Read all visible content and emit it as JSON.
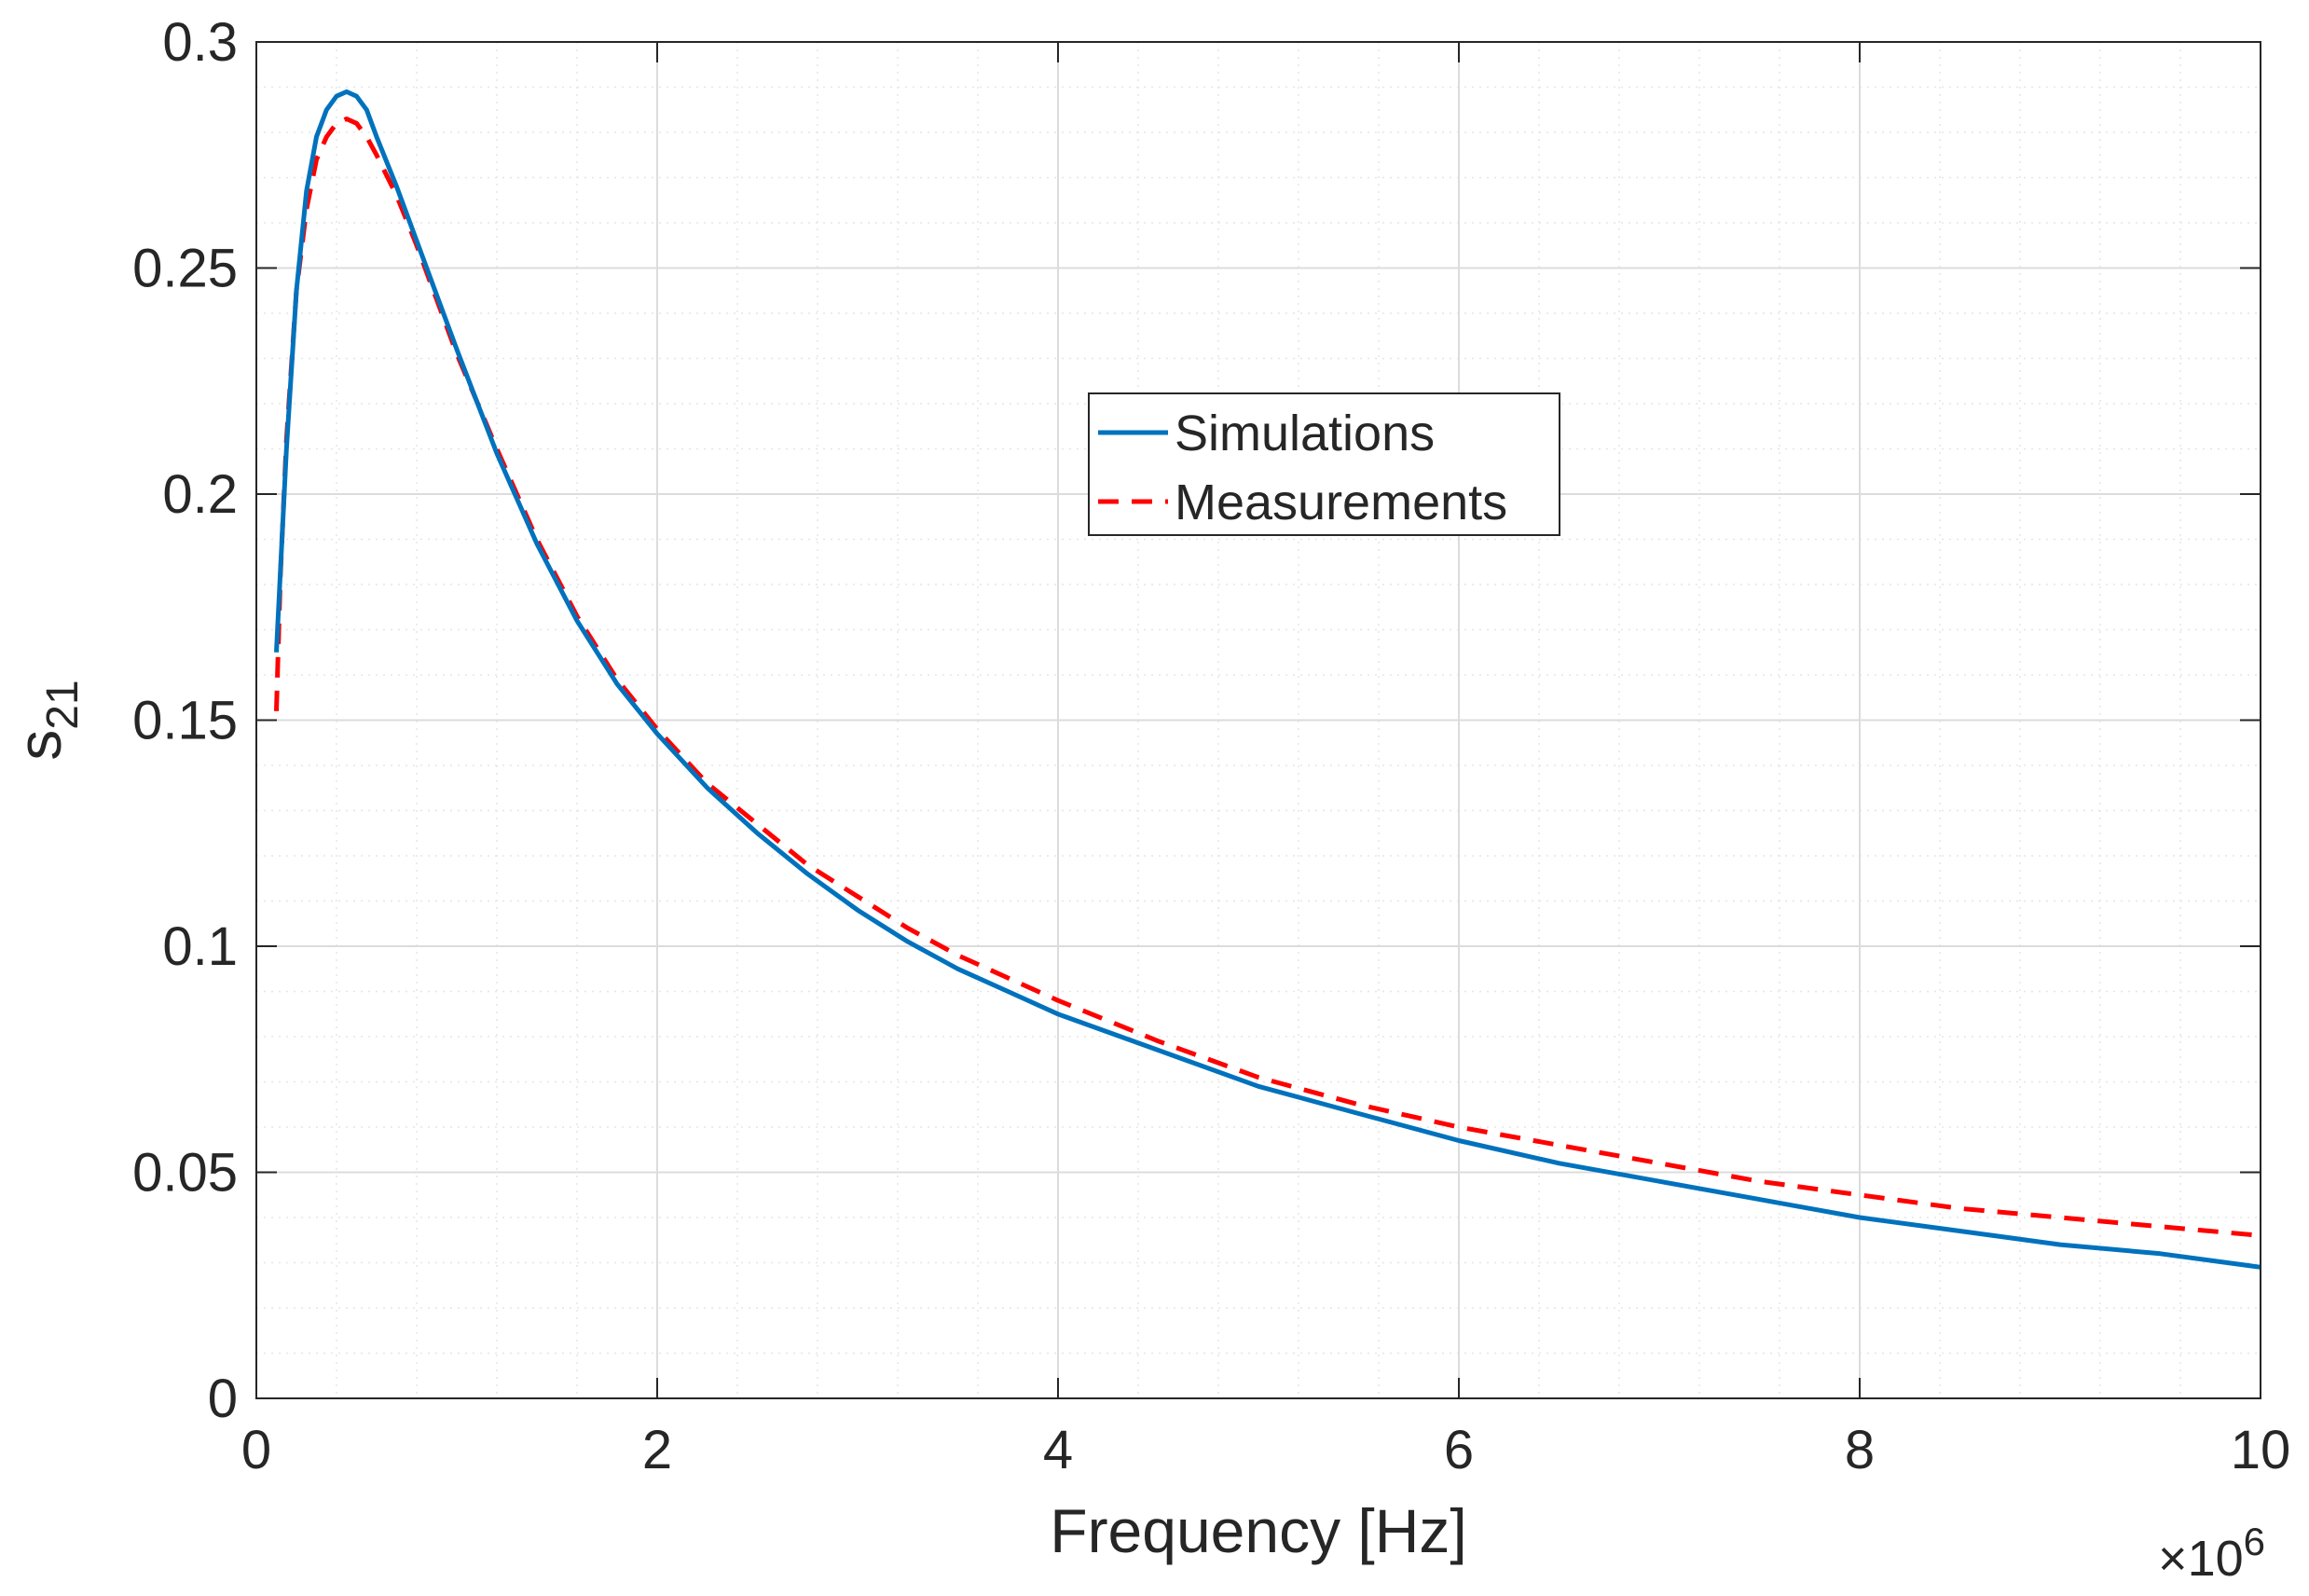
{
  "chart_data": {
    "type": "line",
    "title": "",
    "xlabel": "Frequency [Hz]",
    "ylabel_base": "s",
    "ylabel_sub": "21",
    "x_exponent_prefix": "×10",
    "x_exponent_power": "6",
    "x_exponent_value": 1000000,
    "xlim": [
      0,
      10
    ],
    "ylim": [
      0,
      0.3
    ],
    "xticks": [
      0,
      2,
      4,
      6,
      8,
      10
    ],
    "xtick_labels": [
      "0",
      "2",
      "4",
      "6",
      "8",
      "10"
    ],
    "yticks": [
      0,
      0.05,
      0.1,
      0.15,
      0.2,
      0.25,
      0.3
    ],
    "ytick_labels": [
      "0",
      "0.05",
      "0.1",
      "0.15",
      "0.2",
      "0.25",
      "0.3"
    ],
    "grid": true,
    "minor_grid": true,
    "legend_position": "upper-center",
    "series": [
      {
        "name": "Simulations",
        "color": "#0072BD",
        "style": "solid",
        "x": [
          0.1,
          0.15,
          0.2,
          0.25,
          0.3,
          0.35,
          0.4,
          0.45,
          0.5,
          0.55,
          0.6,
          0.7,
          0.8,
          0.9,
          1.0,
          1.2,
          1.4,
          1.6,
          1.8,
          2.0,
          2.25,
          2.5,
          2.75,
          3.0,
          3.25,
          3.5,
          3.75,
          4.0,
          4.5,
          5.0,
          5.5,
          6.0,
          6.5,
          7.0,
          7.5,
          8.0,
          8.5,
          9.0,
          9.5,
          10.0
        ],
        "y": [
          0.165,
          0.21,
          0.245,
          0.267,
          0.279,
          0.285,
          0.288,
          0.289,
          0.288,
          0.285,
          0.279,
          0.268,
          0.256,
          0.244,
          0.232,
          0.209,
          0.189,
          0.172,
          0.158,
          0.147,
          0.135,
          0.125,
          0.116,
          0.108,
          0.101,
          0.095,
          0.09,
          0.085,
          0.077,
          0.069,
          0.063,
          0.057,
          0.052,
          0.048,
          0.044,
          0.04,
          0.037,
          0.034,
          0.032,
          0.029
        ]
      },
      {
        "name": "Measurements",
        "color": "#FF0000",
        "style": "dashed",
        "x": [
          0.1,
          0.12,
          0.15,
          0.2,
          0.25,
          0.3,
          0.35,
          0.4,
          0.45,
          0.5,
          0.55,
          0.6,
          0.7,
          0.8,
          0.9,
          1.0,
          1.2,
          1.4,
          1.6,
          1.8,
          2.0,
          2.25,
          2.5,
          2.75,
          3.0,
          3.25,
          3.5,
          3.75,
          4.0,
          4.5,
          5.0,
          5.5,
          6.0,
          6.5,
          7.0,
          7.5,
          8.0,
          8.5,
          9.0,
          9.5,
          10.0
        ],
        "y": [
          0.152,
          0.182,
          0.212,
          0.245,
          0.263,
          0.274,
          0.279,
          0.282,
          0.283,
          0.282,
          0.279,
          0.275,
          0.266,
          0.255,
          0.243,
          0.231,
          0.21,
          0.19,
          0.173,
          0.159,
          0.148,
          0.136,
          0.127,
          0.118,
          0.111,
          0.104,
          0.098,
          0.093,
          0.088,
          0.079,
          0.071,
          0.065,
          0.06,
          0.056,
          0.052,
          0.048,
          0.045,
          0.042,
          0.04,
          0.038,
          0.036
        ]
      }
    ]
  }
}
